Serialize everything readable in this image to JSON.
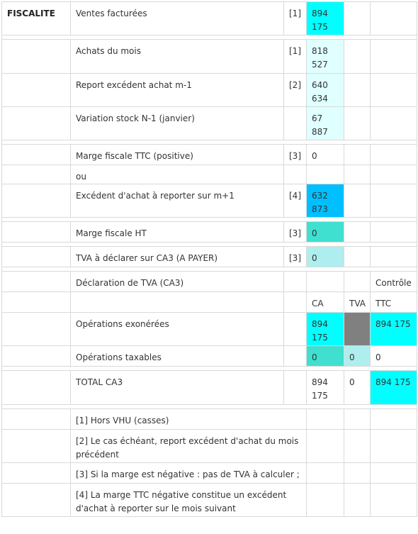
{
  "section_label": "FISCALITE",
  "rows": {
    "ventes": {
      "label": "Ventes facturées",
      "ref": "[1]",
      "value": "894 175",
      "color": "#00ffff"
    },
    "achats": {
      "label": "Achats du mois",
      "ref": "[1]",
      "value": "818 527",
      "color": "#e0ffff"
    },
    "report": {
      "label": "Report excédent achat m-1",
      "ref": "[2]",
      "value": "640 634",
      "color": "#e0ffff"
    },
    "stock": {
      "label": "Variation stock N-1 (janvier)",
      "ref": "",
      "value": "67 887",
      "color": "#e0ffff"
    },
    "marge_ttc": {
      "label": "Marge fiscale TTC (positive)",
      "ref": "[3]",
      "value": "0"
    },
    "ou": {
      "label": "ou"
    },
    "excedent": {
      "label": "Excédent d'achat à reporter sur m+1",
      "ref": "[4]",
      "value": "632 873",
      "color": "#00bfff"
    },
    "marge_ht": {
      "label": "Marge fiscale HT",
      "ref": "[3]",
      "value": "0",
      "color": "#40e0d0"
    },
    "tva_declarer": {
      "label": "TVA à déclarer sur CA3 (A PAYER)",
      "ref": "[3]",
      "value": "0",
      "color": "#afeeee"
    }
  },
  "declaration": {
    "title": "Déclaration de TVA (CA3)",
    "controle_label": "Contrôle",
    "col_ca": "CA",
    "col_tva": "TVA",
    "col_ttc": "TTC",
    "exonerees": {
      "label": "Opérations exonérées",
      "ca": "894 175",
      "tva": "",
      "ttc": "894 175"
    },
    "taxables": {
      "label": "Opérations taxables",
      "ca": "0",
      "tva": "0",
      "ttc": "0"
    },
    "total": {
      "label": "TOTAL CA3",
      "ca": "894 175",
      "tva": "0",
      "ttc": "894 175"
    }
  },
  "notes": [
    "[1] Hors VHU (casses)",
    "[2] Le cas échéant, report excédent d'achat du mois précédent",
    "[3] Si la marge est négative : pas de TVA à calculer ;",
    "[4] La marge TTC négative constitue un excédent d'achat à reporter sur le mois suivant"
  ]
}
